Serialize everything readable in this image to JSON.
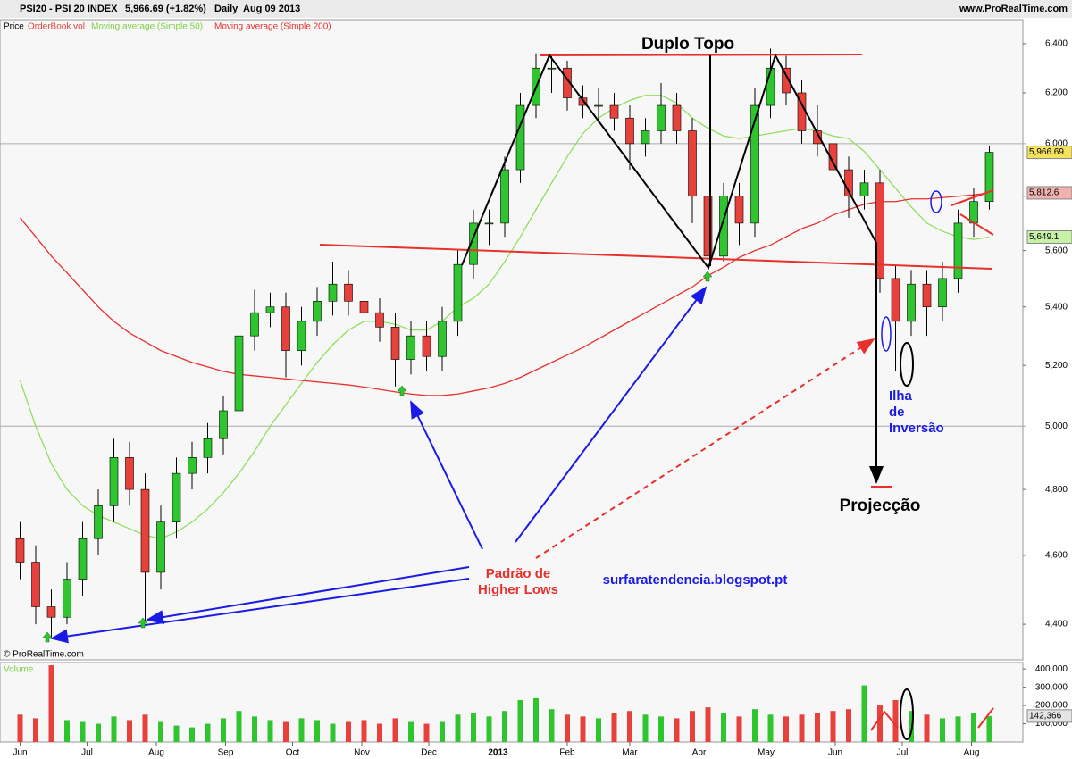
{
  "header": {
    "symbol": "PSI20 - PSI 20 INDEX",
    "quote": "5,966.69 (+1.82%)",
    "period": "Daily",
    "date": "Aug 09 2013",
    "site": "www.ProRealTime.com"
  },
  "chart_data": {
    "type": "candlestick",
    "x": [
      0,
      7,
      14,
      21,
      28,
      35,
      42,
      49,
      56,
      63,
      70,
      77,
      84,
      91,
      98,
      105,
      112,
      119,
      126,
      133,
      140,
      147,
      154,
      161,
      168,
      175,
      182,
      189,
      196,
      203,
      210,
      217,
      224,
      231,
      238,
      245,
      252,
      259,
      266,
      273,
      280,
      287,
      294,
      301,
      308,
      315,
      322,
      329,
      336,
      343,
      350,
      357,
      364,
      371,
      378,
      385,
      392,
      399,
      406,
      413,
      420,
      427,
      434
    ],
    "xlim": [
      -9,
      449
    ],
    "xticks": [
      {
        "value": 0,
        "label": "Jun"
      },
      {
        "value": 30,
        "label": "Jul"
      },
      {
        "value": 61,
        "label": "Aug"
      },
      {
        "value": 92,
        "label": "Sep"
      },
      {
        "value": 122,
        "label": "Oct"
      },
      {
        "value": 153,
        "label": "Nov"
      },
      {
        "value": 183,
        "label": "Dec"
      },
      {
        "value": 214,
        "label": "2013"
      },
      {
        "value": 245,
        "label": "Feb"
      },
      {
        "value": 273,
        "label": "Mar"
      },
      {
        "value": 304,
        "label": "Apr"
      },
      {
        "value": 334,
        "label": "May"
      },
      {
        "value": 365,
        "label": "Jun"
      },
      {
        "value": 395,
        "label": "Jul"
      },
      {
        "value": 426,
        "label": "Aug"
      }
    ],
    "ylim": [
      4300,
      6500
    ],
    "log_scale": true,
    "yticks": [
      {
        "value": 4400,
        "label": "4,400"
      },
      {
        "value": 4600,
        "label": "4,600"
      },
      {
        "value": 4800,
        "label": "4,800"
      },
      {
        "value": 5000,
        "label": "5,000"
      },
      {
        "value": 5200,
        "label": "5,200"
      },
      {
        "value": 5400,
        "label": "5,400"
      },
      {
        "value": 5600,
        "label": "5,600"
      },
      {
        "value": 5800,
        "label": "5,800"
      },
      {
        "value": 6000,
        "label": "6,000"
      },
      {
        "value": 6200,
        "label": "6,200"
      },
      {
        "value": 6400,
        "label": "6,400"
      }
    ],
    "series": [
      {
        "name": "Price",
        "up_color": "#2fc52f",
        "down_color": "#e8413c",
        "open": [
          4650,
          4580,
          4450,
          4420,
          4530,
          4650,
          4750,
          4900,
          4800,
          4550,
          4700,
          4850,
          4900,
          4960,
          5050,
          5300,
          5380,
          5400,
          5250,
          5350,
          5420,
          5480,
          5420,
          5380,
          5330,
          5220,
          5300,
          5230,
          5350,
          5550,
          5700,
          5700,
          5900,
          6150,
          6300,
          6300,
          6180,
          6150,
          6150,
          6100,
          6000,
          6050,
          6150,
          6050,
          5800,
          5580,
          5800,
          5700,
          6150,
          6300,
          6200,
          6050,
          6000,
          5900,
          5800,
          5850,
          5500,
          5350,
          5480,
          5400,
          5500,
          5700,
          5780
        ],
        "high": [
          4700,
          4630,
          4500,
          4580,
          4700,
          4800,
          4960,
          4950,
          4850,
          4750,
          4900,
          4950,
          5010,
          5100,
          5350,
          5460,
          5450,
          5450,
          5400,
          5470,
          5560,
          5530,
          5470,
          5430,
          5380,
          5350,
          5350,
          5400,
          5600,
          5750,
          5750,
          5950,
          6200,
          6360,
          6350,
          6330,
          6230,
          6220,
          6200,
          6150,
          6100,
          6240,
          6200,
          6100,
          5850,
          5850,
          5850,
          6220,
          6380,
          6350,
          6250,
          6150,
          6050,
          5950,
          5900,
          5900,
          5550,
          5530,
          5530,
          5560,
          5750,
          5830,
          5990
        ],
        "low": [
          4530,
          4400,
          4360,
          4400,
          4480,
          4600,
          4700,
          4750,
          4410,
          4500,
          4650,
          4800,
          4850,
          4910,
          5000,
          5250,
          5330,
          5160,
          5200,
          5300,
          5370,
          5370,
          5330,
          5280,
          5130,
          5170,
          5180,
          5180,
          5300,
          5500,
          5620,
          5650,
          5850,
          6100,
          6200,
          6130,
          6100,
          6080,
          6050,
          5900,
          5950,
          6000,
          6000,
          5700,
          5530,
          5560,
          5620,
          5650,
          6100,
          6150,
          6000,
          5950,
          5850,
          5720,
          5750,
          5450,
          5180,
          5300,
          5300,
          5350,
          5450,
          5650,
          5750
        ],
        "close": [
          4580,
          4450,
          4420,
          4530,
          4650,
          4750,
          4900,
          4800,
          4550,
          4700,
          4850,
          4900,
          4960,
          5050,
          5300,
          5380,
          5400,
          5250,
          5350,
          5420,
          5480,
          5420,
          5380,
          5330,
          5220,
          5300,
          5230,
          5350,
          5550,
          5700,
          5700,
          5900,
          6150,
          6300,
          6300,
          6180,
          6150,
          6150,
          6100,
          6000,
          6050,
          6150,
          6050,
          5800,
          5580,
          5800,
          5700,
          6150,
          6300,
          6200,
          6050,
          6000,
          5900,
          5800,
          5850,
          5500,
          5350,
          5480,
          5400,
          5500,
          5700,
          5780,
          5966.69
        ]
      },
      {
        "name": "Moving average (Simple 50)",
        "color": "#8fe05a",
        "values": [
          5150,
          5000,
          4880,
          4800,
          4750,
          4720,
          4700,
          4680,
          4660,
          4650,
          4670,
          4700,
          4740,
          4790,
          4850,
          4920,
          5000,
          5070,
          5140,
          5210,
          5270,
          5320,
          5350,
          5350,
          5340,
          5320,
          5320,
          5350,
          5400,
          5430,
          5480,
          5560,
          5650,
          5750,
          5850,
          5950,
          6040,
          6100,
          6140,
          6170,
          6190,
          6190,
          6160,
          6100,
          6060,
          6030,
          6020,
          6030,
          6040,
          6050,
          6060,
          6050,
          6030,
          6020,
          5970,
          5900,
          5830,
          5760,
          5700,
          5670,
          5650,
          5640,
          5649.1
        ]
      },
      {
        "name": "Moving average (Simple 200)",
        "color": "#e8302c",
        "values": [
          5720,
          5650,
          5580,
          5520,
          5460,
          5400,
          5350,
          5310,
          5280,
          5250,
          5230,
          5210,
          5195,
          5180,
          5170,
          5165,
          5160,
          5155,
          5150,
          5145,
          5140,
          5135,
          5128,
          5120,
          5112,
          5105,
          5100,
          5100,
          5105,
          5115,
          5125,
          5140,
          5160,
          5185,
          5210,
          5235,
          5260,
          5290,
          5320,
          5350,
          5380,
          5410,
          5440,
          5470,
          5510,
          5540,
          5575,
          5600,
          5620,
          5650,
          5680,
          5700,
          5730,
          5750,
          5770,
          5780,
          5780,
          5790,
          5790,
          5795,
          5800,
          5805,
          5812.6
        ]
      }
    ],
    "orderbook_label": "OrderBook vol",
    "last_labels": [
      {
        "value": 5966.69,
        "label": "5,966.69",
        "color": "#f4e25c"
      },
      {
        "value": 5812.6,
        "label": "5,812.6",
        "color": "#f2b3b0"
      },
      {
        "value": 5649.1,
        "label": "5,649.1",
        "color": "#c8f2a8"
      }
    ],
    "annotations": {
      "pattern": "Duplo Topo",
      "projection": "Projecção",
      "island": [
        "Ilha",
        "de",
        "Inversão"
      ],
      "higher_lows": [
        "Padrão de",
        "Higher Lows"
      ],
      "blog": "surfaratendencia.blogspot.pt"
    }
  },
  "volume": {
    "title": "Volume",
    "values": [
      150000,
      130000,
      420000,
      120000,
      110000,
      100000,
      140000,
      120000,
      150000,
      110000,
      90000,
      80000,
      100000,
      130000,
      170000,
      140000,
      120000,
      110000,
      130000,
      120000,
      100000,
      110000,
      120000,
      100000,
      130000,
      110000,
      100000,
      110000,
      150000,
      160000,
      140000,
      170000,
      230000,
      240000,
      180000,
      150000,
      140000,
      130000,
      160000,
      170000,
      150000,
      140000,
      130000,
      170000,
      190000,
      160000,
      140000,
      180000,
      150000,
      140000,
      150000,
      160000,
      170000,
      180000,
      310000,
      200000,
      230000,
      170000,
      150000,
      130000,
      140000,
      160000,
      142366
    ],
    "ylim": [
      0,
      435000
    ],
    "yticks": [
      {
        "value": 100000,
        "label": "100,000"
      },
      {
        "value": 200000,
        "label": "200,000"
      },
      {
        "value": 300000,
        "label": "300,000"
      },
      {
        "value": 400000,
        "label": "400,000"
      }
    ],
    "last_label": {
      "value": 142366,
      "label": "142,366"
    }
  },
  "footer": "© ProRealTime.com"
}
